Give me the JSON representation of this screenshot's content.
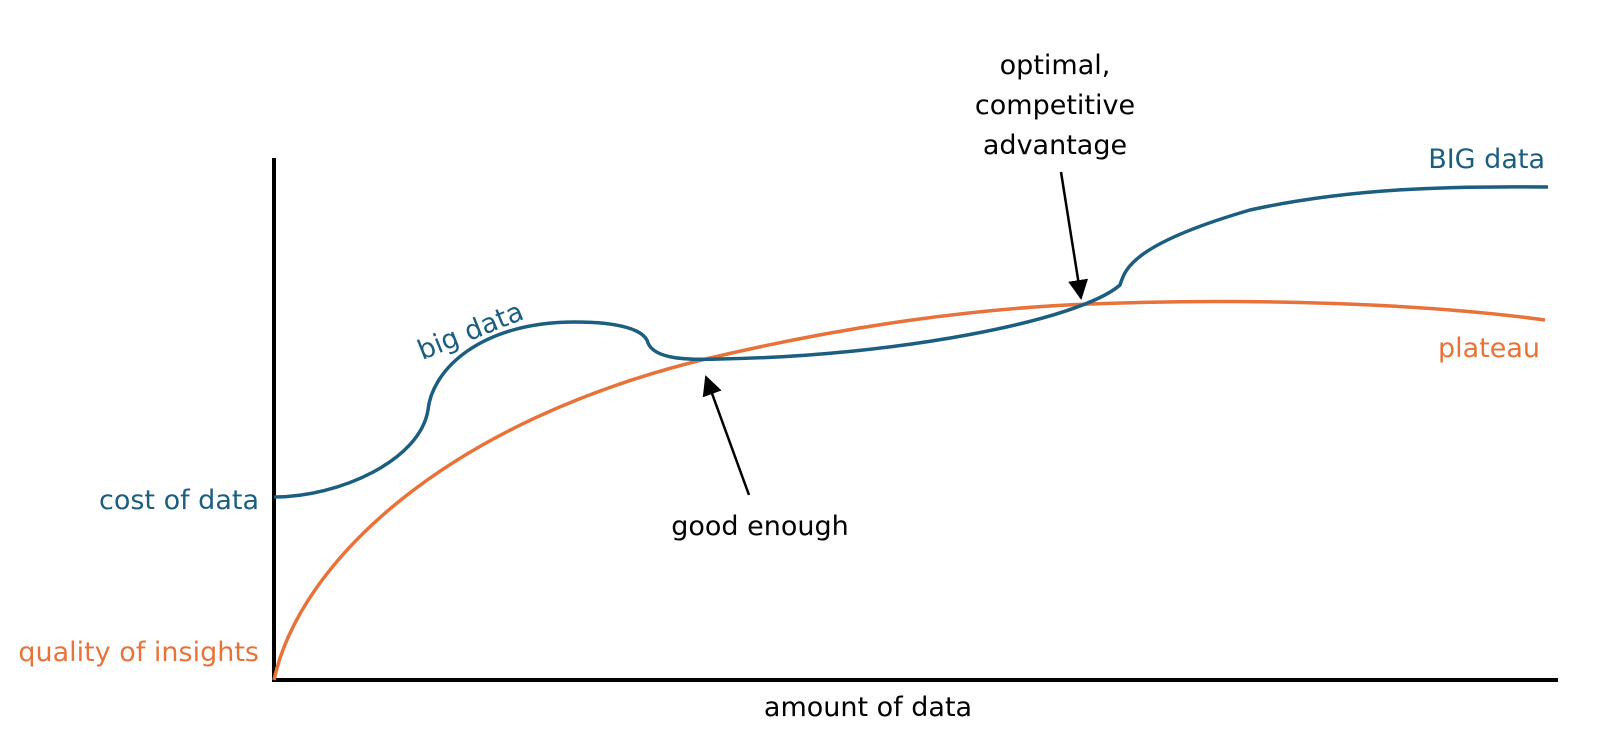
{
  "y_axis_labels": [
    "cost of data",
    "quality of insights"
  ],
  "x_axis_label": "amount of data",
  "curve_labels": [
    "big data",
    "BIG data",
    "plateau"
  ],
  "annotations": [
    {
      "lines": [
        "optimal,",
        "competitive",
        "advantage"
      ]
    },
    {
      "lines": [
        "good enough"
      ]
    }
  ]
}
